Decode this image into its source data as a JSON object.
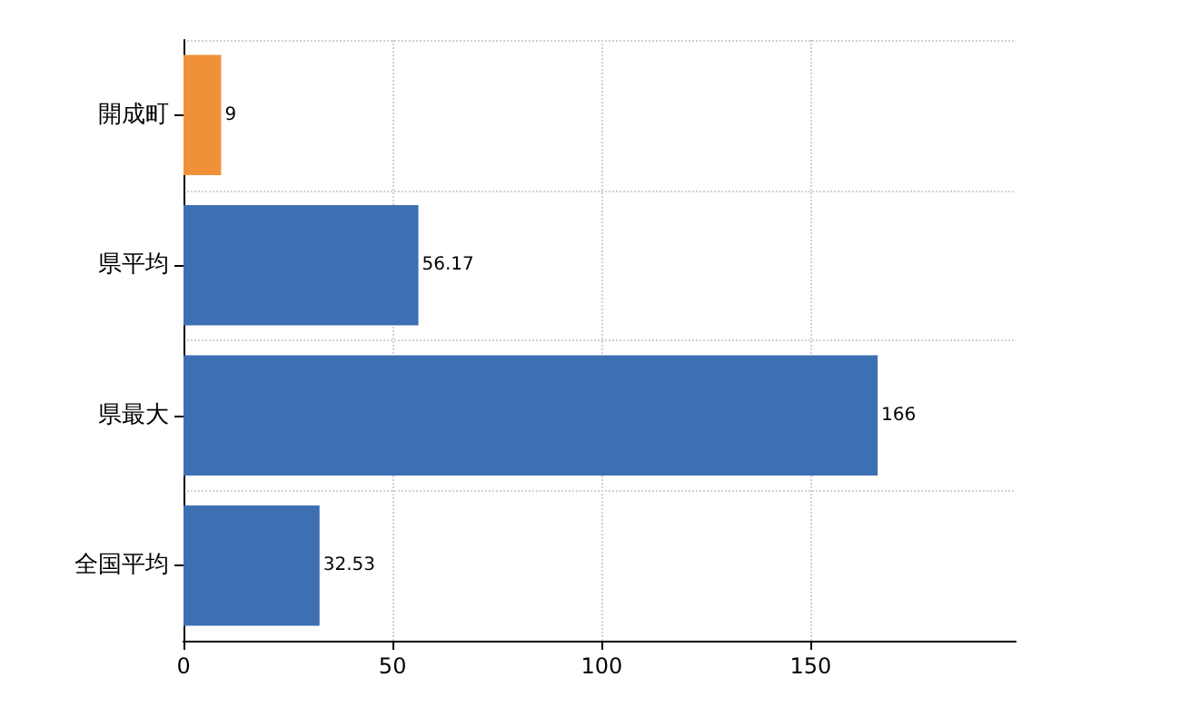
{
  "chart_data": {
    "type": "bar",
    "orientation": "horizontal",
    "categories": [
      "開成町",
      "県平均",
      "県最大",
      "全国平均"
    ],
    "values": [
      9,
      56.17,
      166,
      32.53
    ],
    "colors": [
      "#f0913a",
      "#3d6fb3",
      "#3d6fb3",
      "#3d6fb3"
    ],
    "xlim": [
      0,
      199
    ],
    "xticks": [
      0,
      50,
      100,
      150
    ],
    "grid": true,
    "data_labels": true
  }
}
